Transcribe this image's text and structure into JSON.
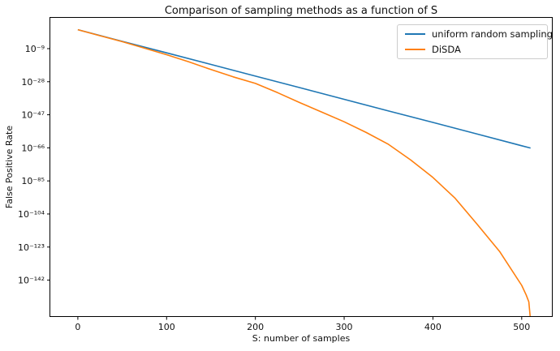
{
  "figure": {
    "title": "Comparison of sampling methods as a function of S",
    "xlabel": "S: number of samples",
    "ylabel": "False Positive Rate"
  },
  "legend": {
    "position": "upper right",
    "items": [
      {
        "label": "uniform random sampling",
        "color": "#1f77b4"
      },
      {
        "label": "DiSDA",
        "color": "#ff7f0e"
      }
    ]
  },
  "chart_data": {
    "type": "line",
    "title": "Comparison of sampling methods as a function of S",
    "xlabel": "S: number of samples",
    "ylabel": "False Positive Rate",
    "grid": false,
    "y_scale": "log10",
    "xlim": [
      -31,
      534
    ],
    "ylim_log10": [
      -162.7,
      8.7
    ],
    "x_ticks": [
      {
        "value": 0,
        "label": "0"
      },
      {
        "value": 100,
        "label": "100"
      },
      {
        "value": 200,
        "label": "200"
      },
      {
        "value": 300,
        "label": "300"
      },
      {
        "value": 400,
        "label": "400"
      },
      {
        "value": 500,
        "label": "500"
      }
    ],
    "y_ticks": [
      {
        "log10": -9,
        "label": "10⁻⁹"
      },
      {
        "log10": -28,
        "label": "10⁻²⁸"
      },
      {
        "log10": -47,
        "label": "10⁻⁴⁷"
      },
      {
        "log10": -66,
        "label": "10⁻⁶⁶"
      },
      {
        "log10": -85,
        "label": "10⁻⁸⁵"
      },
      {
        "log10": -104,
        "label": "10⁻¹⁰⁴"
      },
      {
        "log10": -123,
        "label": "10⁻¹²³"
      },
      {
        "log10": -142,
        "label": "10⁻¹⁴²"
      }
    ],
    "series": [
      {
        "id": "uniform",
        "name": "uniform random sampling",
        "color": "#1f77b4",
        "points_format": "[S, log10(FalsePositiveRate)]",
        "points": [
          [
            0,
            1.9
          ],
          [
            50,
            -4.8
          ],
          [
            100,
            -11.4
          ],
          [
            150,
            -18.1
          ],
          [
            200,
            -24.8
          ],
          [
            250,
            -31.4
          ],
          [
            300,
            -38.1
          ],
          [
            350,
            -44.8
          ],
          [
            400,
            -51.4
          ],
          [
            450,
            -58.1
          ],
          [
            500,
            -64.8
          ],
          [
            510,
            -66.1
          ]
        ]
      },
      {
        "id": "disda",
        "name": "DiSDA",
        "color": "#ff7f0e",
        "points_format": "[S, log10(FalsePositiveRate)]",
        "note": "curve plunges toward 0 near S≈510 (clipped at axis bottom)",
        "points": [
          [
            0,
            1.9
          ],
          [
            25,
            -1.6
          ],
          [
            50,
            -5.0
          ],
          [
            75,
            -8.7
          ],
          [
            100,
            -12.5
          ],
          [
            125,
            -16.6
          ],
          [
            150,
            -21.0
          ],
          [
            175,
            -25.2
          ],
          [
            200,
            -29.0
          ],
          [
            225,
            -34.3
          ],
          [
            250,
            -40.0
          ],
          [
            275,
            -45.5
          ],
          [
            300,
            -51.0
          ],
          [
            325,
            -57.2
          ],
          [
            350,
            -64.0
          ],
          [
            375,
            -73.0
          ],
          [
            400,
            -83.0
          ],
          [
            425,
            -95.0
          ],
          [
            450,
            -110.0
          ],
          [
            475,
            -125.5
          ],
          [
            500,
            -145.0
          ],
          [
            505,
            -150.5
          ],
          [
            508,
            -154.5
          ],
          [
            509.5,
            -162.7
          ]
        ]
      }
    ]
  }
}
